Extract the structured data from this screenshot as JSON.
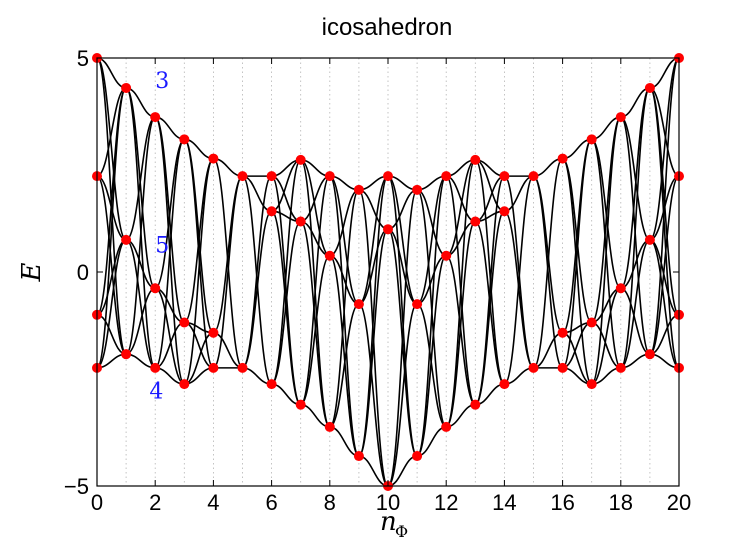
{
  "chart_data": {
    "type": "line",
    "title": "icosahedron",
    "xlabel_main": "n",
    "xlabel_sub": "Φ",
    "ylabel": "E",
    "xlim": [
      0,
      20
    ],
    "ylim": [
      -5,
      5
    ],
    "xticks": [
      0,
      2,
      4,
      6,
      8,
      10,
      12,
      14,
      16,
      18,
      20
    ],
    "yticks": [
      {
        "v": -5,
        "label": "−5"
      },
      {
        "v": 0,
        "label": "0"
      },
      {
        "v": 5,
        "label": "5"
      }
    ],
    "grid": "vertical dotted at each integer",
    "line_color": "#000000",
    "marker_color": "#ff0000",
    "points": [
      [
        0,
        5
      ],
      [
        0,
        2.24
      ],
      [
        0,
        -1
      ],
      [
        0,
        -2.24
      ],
      [
        1,
        4.3
      ],
      [
        1,
        0.75
      ],
      [
        1,
        -1.92
      ],
      [
        2,
        3.62
      ],
      [
        2,
        -0.38
      ],
      [
        2,
        -2.24
      ],
      [
        3,
        3.1
      ],
      [
        3,
        -1.18
      ],
      [
        3,
        -2.62
      ],
      [
        4,
        2.65
      ],
      [
        4,
        -1.42
      ],
      [
        4,
        -2.24
      ],
      [
        5,
        2.24
      ],
      [
        5,
        -2.24
      ],
      [
        6,
        2.24
      ],
      [
        6,
        1.42
      ],
      [
        6,
        -2.62
      ],
      [
        7,
        2.62
      ],
      [
        7,
        1.18
      ],
      [
        7,
        -3.1
      ],
      [
        8,
        2.24
      ],
      [
        8,
        0.38
      ],
      [
        8,
        -3.62
      ],
      [
        9,
        1.92
      ],
      [
        9,
        -0.75
      ],
      [
        9,
        -4.3
      ],
      [
        10,
        2.24
      ],
      [
        10,
        1
      ],
      [
        10,
        -5
      ],
      [
        11,
        1.92
      ],
      [
        11,
        -0.75
      ],
      [
        11,
        -4.3
      ],
      [
        12,
        2.24
      ],
      [
        12,
        0.38
      ],
      [
        12,
        -3.62
      ],
      [
        13,
        2.62
      ],
      [
        13,
        1.18
      ],
      [
        13,
        -3.1
      ],
      [
        14,
        2.24
      ],
      [
        14,
        1.42
      ],
      [
        14,
        -2.62
      ],
      [
        15,
        2.24
      ],
      [
        15,
        -2.24
      ],
      [
        16,
        2.65
      ],
      [
        16,
        -1.42
      ],
      [
        16,
        -2.24
      ],
      [
        17,
        3.1
      ],
      [
        17,
        -1.18
      ],
      [
        17,
        -2.62
      ],
      [
        18,
        3.62
      ],
      [
        18,
        -0.38
      ],
      [
        18,
        -2.24
      ],
      [
        19,
        4.3
      ],
      [
        19,
        0.75
      ],
      [
        19,
        -1.92
      ],
      [
        20,
        5
      ],
      [
        20,
        2.24
      ],
      [
        20,
        -1
      ],
      [
        20,
        -2.24
      ]
    ],
    "annotations": [
      {
        "text": "3",
        "x": 2,
        "y": 4.3
      },
      {
        "text": "5",
        "x": 2,
        "y": 0.45
      },
      {
        "text": "4",
        "x": 1.8,
        "y": -2.95
      }
    ]
  }
}
